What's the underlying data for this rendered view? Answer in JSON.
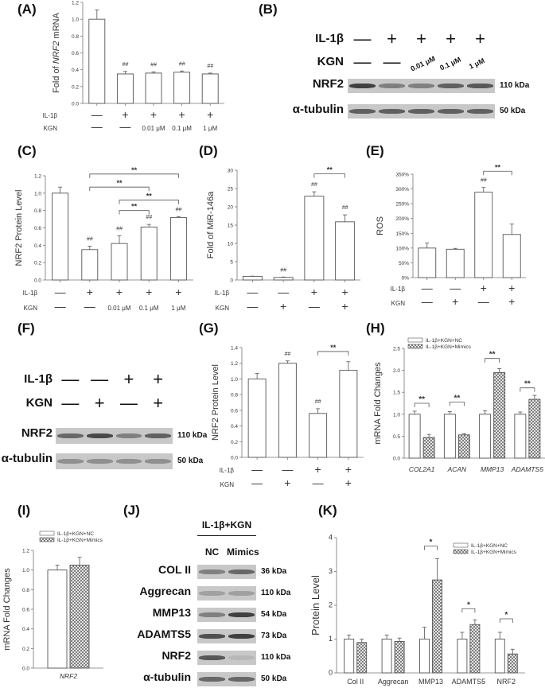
{
  "panels": {
    "A": {
      "label": "(A)"
    },
    "B": {
      "label": "(B)"
    },
    "C": {
      "label": "(C)"
    },
    "D": {
      "label": "(D)"
    },
    "E": {
      "label": "(E)"
    },
    "F": {
      "label": "(F)"
    },
    "G": {
      "label": "(G)"
    },
    "H": {
      "label": "(H)"
    },
    "I": {
      "label": "(I)"
    },
    "J": {
      "label": "(J)"
    },
    "K": {
      "label": "(K)"
    }
  },
  "blots": {
    "B": {
      "row_labels": {
        "il1b": "IL-1β",
        "kgn": "KGN"
      },
      "il1b": [
        "—",
        "+",
        "+",
        "+",
        "+"
      ],
      "kgn": [
        "—",
        "—",
        "0.01 μM",
        "0.1 μM",
        "1 μM"
      ],
      "proteins": [
        {
          "name": "NRF2",
          "kda": "110 kDa",
          "intensity": [
            0.85,
            0.45,
            0.45,
            0.65,
            0.7
          ]
        },
        {
          "name": "α-tubulin",
          "kda": "50 kDa",
          "intensity": [
            0.65,
            0.65,
            0.65,
            0.65,
            0.65
          ]
        }
      ]
    },
    "F": {
      "row_labels": {
        "il1b": "IL-1β",
        "kgn": "KGN"
      },
      "il1b": [
        "—",
        "—",
        "+",
        "+"
      ],
      "kgn": [
        "—",
        "+",
        "—",
        "+"
      ],
      "proteins": [
        {
          "name": "NRF2",
          "kda": "110 kDa",
          "intensity": [
            0.6,
            0.8,
            0.45,
            0.65
          ]
        },
        {
          "name": "α-tubulin",
          "kda": "50 kDa",
          "intensity": [
            0.35,
            0.35,
            0.35,
            0.35
          ]
        }
      ]
    },
    "J": {
      "group_label": "IL-1β+KGN",
      "columns": [
        "NC",
        "Mimics"
      ],
      "proteins": [
        {
          "name": "COL II",
          "kda": "36 kDa",
          "intensity": [
            0.45,
            0.6
          ]
        },
        {
          "name": "Aggrecan",
          "kda": "110 kDa",
          "intensity": [
            0.25,
            0.25
          ]
        },
        {
          "name": "MMP13",
          "kda": "54 kDa",
          "intensity": [
            0.45,
            0.85
          ]
        },
        {
          "name": "ADAMTS5",
          "kda": "73 kDa",
          "intensity": [
            0.75,
            0.85
          ]
        },
        {
          "name": "NRF2",
          "kda": "110 kDa",
          "intensity": [
            0.7,
            0.1
          ]
        },
        {
          "name": "α-tubulin",
          "kda": "50 kDa",
          "intensity": [
            0.6,
            0.6
          ]
        }
      ]
    }
  },
  "chart_data": [
    {
      "id": "A",
      "type": "bar",
      "title": "",
      "xlabel": "",
      "ylabel": "Fold of NRF2 mRNA",
      "ylim": [
        0,
        1.2
      ],
      "yticks": [
        "0.0",
        "0.2",
        "0.4",
        "0.6",
        "0.8",
        "1.0",
        "1.2"
      ],
      "row_labels": [
        "IL-1β",
        "KGN"
      ],
      "treatments": {
        "il1b": [
          "—",
          "+",
          "+",
          "+",
          "+"
        ],
        "kgn": [
          "—",
          "—",
          "0.01 μM",
          "0.1 μM",
          "1 μM"
        ]
      },
      "values": [
        1.0,
        0.35,
        0.36,
        0.37,
        0.35
      ],
      "errors": [
        0.11,
        0.03,
        0.015,
        0.015,
        0.01
      ],
      "marks": [
        "",
        "##",
        "##",
        "##",
        "##"
      ],
      "brackets": [],
      "grid": false
    },
    {
      "id": "C",
      "type": "bar",
      "title": "",
      "xlabel": "",
      "ylabel": "NRF2 Protein Level",
      "ylim": [
        0,
        1.2
      ],
      "yticks": [
        "0.0",
        "0.2",
        "0.4",
        "0.6",
        "0.8",
        "1.0",
        "1.2"
      ],
      "row_labels": [
        "IL-1β",
        "KGN"
      ],
      "treatments": {
        "il1b": [
          "—",
          "+",
          "+",
          "+",
          "+"
        ],
        "kgn": [
          "—",
          "—",
          "0.01 μM",
          "0.1 μM",
          "1 μM"
        ]
      },
      "values": [
        1.0,
        0.35,
        0.42,
        0.61,
        0.72
      ],
      "errors": [
        0.07,
        0.04,
        0.09,
        0.03,
        0.01
      ],
      "marks": [
        "",
        "##",
        "##",
        "##",
        "##"
      ],
      "brackets": [
        {
          "from": 1,
          "to": 4,
          "y": 1.22,
          "label": "**"
        },
        {
          "from": 1,
          "to": 3,
          "y": 1.07,
          "label": "**"
        },
        {
          "from": 2,
          "to": 4,
          "y": 0.92,
          "label": "**"
        },
        {
          "from": 2,
          "to": 3,
          "y": 0.8,
          "label": "**"
        }
      ],
      "grid": false
    },
    {
      "id": "D",
      "type": "bar",
      "title": "",
      "xlabel": "",
      "ylabel": "Fold of MiR-146a",
      "ylim": [
        0,
        30
      ],
      "yticks": [
        "0",
        "5",
        "10",
        "15",
        "20",
        "25",
        "30"
      ],
      "row_labels": [
        "IL-1β",
        "KGN"
      ],
      "treatments": {
        "il1b": [
          "—",
          "—",
          "+",
          "+"
        ],
        "kgn": [
          "—",
          "+",
          "—",
          "+"
        ]
      },
      "values": [
        1.0,
        0.7,
        22.9,
        15.9
      ],
      "errors": [
        0.05,
        0.1,
        1.2,
        1.9
      ],
      "marks": [
        "",
        "##",
        "##",
        "##"
      ],
      "brackets": [
        {
          "from": 2,
          "to": 3,
          "y": 29,
          "label": "**"
        }
      ],
      "grid": false
    },
    {
      "id": "E",
      "type": "bar",
      "title": "",
      "xlabel": "",
      "ylabel": "ROS",
      "ylim": [
        0,
        350
      ],
      "yticks": [
        "0%",
        "50%",
        "100%",
        "150%",
        "200%",
        "250%",
        "300%",
        "350%"
      ],
      "row_labels": [
        "IL-1β",
        "KGN"
      ],
      "treatments": {
        "il1b": [
          "—",
          "—",
          "+",
          "+"
        ],
        "kgn": [
          "—",
          "+",
          "—",
          "+"
        ]
      },
      "values": [
        100,
        96,
        289,
        146
      ],
      "errors": [
        17,
        3,
        16,
        35
      ],
      "marks": [
        "",
        "",
        "##",
        ""
      ],
      "brackets": [
        {
          "from": 2,
          "to": 3,
          "y": 360,
          "label": "**"
        }
      ],
      "grid": false
    },
    {
      "id": "G",
      "type": "bar",
      "title": "",
      "xlabel": "",
      "ylabel": "NRF2 Protein Level",
      "ylim": [
        0,
        1.4
      ],
      "yticks": [
        "0.0",
        "0.2",
        "0.4",
        "0.6",
        "0.8",
        "1.0",
        "1.2",
        "1.4"
      ],
      "row_labels": [
        "IL-1β",
        "KGN"
      ],
      "treatments": {
        "il1b": [
          "—",
          "—",
          "+",
          "+"
        ],
        "kgn": [
          "—",
          "+",
          "—",
          "+"
        ]
      },
      "values": [
        1.0,
        1.2,
        0.56,
        1.11
      ],
      "errors": [
        0.07,
        0.03,
        0.06,
        0.11
      ],
      "marks": [
        "",
        "##",
        "##",
        ""
      ],
      "brackets": [
        {
          "from": 2,
          "to": 3,
          "y": 1.35,
          "label": "**"
        }
      ],
      "grid": false
    },
    {
      "id": "H",
      "type": "bar",
      "title": "",
      "xlabel": "",
      "ylabel": "mRNA Fold Changes",
      "ylim": [
        0,
        2.5
      ],
      "yticks": [
        "0.0",
        "0.5",
        "1.0",
        "1.5",
        "2.0",
        "2.5"
      ],
      "categories": [
        "COL2A1",
        "ACAN",
        "MMP13",
        "ADAMTS5"
      ],
      "legend": {
        "position": "top-left",
        "entries": [
          "IL-1β+KGN+NC",
          "IL-1β+KGN+Mimics"
        ]
      },
      "series": [
        {
          "name": "IL-1β+KGN+NC",
          "values": [
            1.0,
            1.0,
            1.0,
            1.0
          ],
          "errors": [
            0.07,
            0.06,
            0.08,
            0.05
          ],
          "pattern": "open"
        },
        {
          "name": "IL-1β+KGN+Mimics",
          "values": [
            0.47,
            0.53,
            1.95,
            1.34
          ],
          "errors": [
            0.07,
            0.03,
            0.09,
            0.09
          ],
          "pattern": "hatched"
        }
      ],
      "brackets": [
        {
          "cat": 0,
          "y": 1.25,
          "label": "**"
        },
        {
          "cat": 1,
          "y": 1.28,
          "label": "**"
        },
        {
          "cat": 2,
          "y": 2.27,
          "label": "**"
        },
        {
          "cat": 3,
          "y": 1.6,
          "label": "**"
        }
      ],
      "grid": false
    },
    {
      "id": "I",
      "type": "bar",
      "title": "",
      "xlabel": "",
      "ylabel": "mRNA Fold Changes",
      "ylim": [
        0,
        1.2
      ],
      "yticks": [
        "0.0",
        "0.2",
        "0.4",
        "0.6",
        "0.8",
        "1.0",
        "1.2"
      ],
      "categories": [
        "NRF2"
      ],
      "legend": {
        "position": "top",
        "entries": [
          "IL-1β+KGN+NC",
          "IL-1β+KGN+Mimics"
        ]
      },
      "series": [
        {
          "name": "IL-1β+KGN+NC",
          "values": [
            1.0
          ],
          "errors": [
            0.05
          ],
          "pattern": "open"
        },
        {
          "name": "IL-1β+KGN+Mimics",
          "values": [
            1.05
          ],
          "errors": [
            0.08
          ],
          "pattern": "hatched"
        }
      ],
      "brackets": [],
      "grid": false
    },
    {
      "id": "K",
      "type": "bar",
      "title": "",
      "xlabel": "",
      "ylabel": "Protein Level",
      "ylim": [
        0,
        4
      ],
      "yticks": [
        "0",
        "1",
        "2",
        "3",
        "4"
      ],
      "categories": [
        "Col II",
        "Aggrecan",
        "MMP13",
        "ADAMTS5",
        "NRF2"
      ],
      "legend": {
        "position": "top-right",
        "entries": [
          "IL-1β+KGN+NC",
          "IL-1β+KGN+Mimics"
        ]
      },
      "series": [
        {
          "name": "IL-1β+KGN+NC",
          "values": [
            1.0,
            1.0,
            1.0,
            1.0,
            1.0
          ],
          "errors": [
            0.12,
            0.12,
            0.35,
            0.2,
            0.2
          ],
          "pattern": "open"
        },
        {
          "name": "IL-1β+KGN+Mimics",
          "values": [
            0.9,
            0.93,
            2.75,
            1.43,
            0.56
          ],
          "errors": [
            0.1,
            0.1,
            0.63,
            0.14,
            0.14
          ],
          "pattern": "hatched"
        }
      ],
      "brackets": [
        {
          "cat": 2,
          "y": 3.75,
          "label": "*"
        },
        {
          "cat": 3,
          "y": 1.9,
          "label": "*"
        },
        {
          "cat": 4,
          "y": 1.6,
          "label": "*"
        }
      ],
      "grid": false
    }
  ]
}
